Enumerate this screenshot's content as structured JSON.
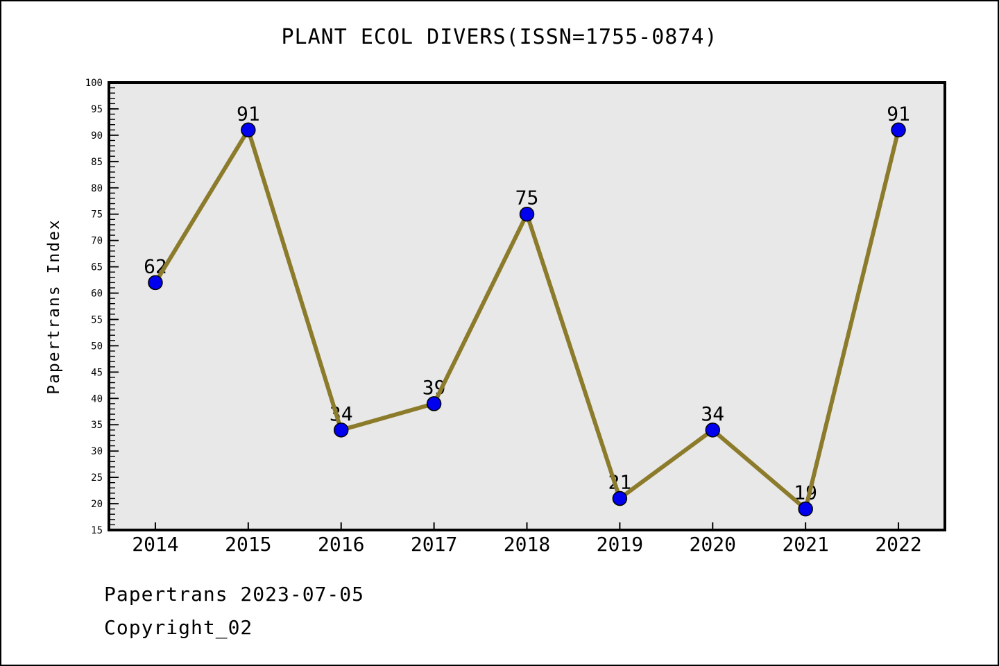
{
  "chart_data": {
    "type": "line",
    "title": "PLANT ECOL DIVERS(ISSN=1755-0874)",
    "ylabel": "Papertrans Index",
    "xlabel": "",
    "categories": [
      "2014",
      "2015",
      "2016",
      "2017",
      "2018",
      "2019",
      "2020",
      "2021",
      "2022"
    ],
    "values": [
      62,
      91,
      34,
      39,
      75,
      21,
      34,
      19,
      91
    ],
    "point_labels": [
      "62",
      "91",
      "34",
      "39",
      "75",
      "21",
      "34",
      "19",
      "91"
    ],
    "ylim": [
      15,
      100
    ],
    "ytick_step": 5,
    "yminor_step": 1,
    "grid": false,
    "legend_position": "none",
    "colors": {
      "line": "#8B7B2B",
      "marker_fill": "#0000EE",
      "marker_edge": "#000000",
      "plot_background": "#E8E8E8",
      "frame": "#000000",
      "text": "#000000"
    }
  },
  "footer": {
    "line1": "Papertrans 2023-07-05",
    "line2": "Copyright_02"
  }
}
